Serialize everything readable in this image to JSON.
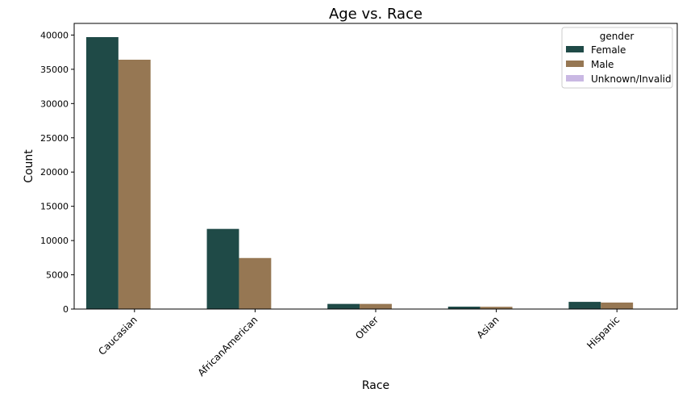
{
  "chart_data": {
    "type": "bar",
    "title": "Age vs. Race",
    "xlabel": "Race",
    "ylabel": "Count",
    "categories": [
      "Caucasian",
      "AfricanAmerican",
      "Other",
      "Asian",
      "Hispanic"
    ],
    "series": [
      {
        "name": "Female",
        "color": "#1f4a47",
        "values": [
          39700,
          11700,
          750,
          350,
          1050
        ]
      },
      {
        "name": "Male",
        "color": "#967753",
        "values": [
          36400,
          7450,
          750,
          330,
          950
        ]
      },
      {
        "name": "Unknown/Invalid",
        "color": "#c9b8e3",
        "values": [
          0,
          0,
          0,
          0,
          0
        ]
      }
    ],
    "ylim": [
      0,
      41700
    ],
    "yticks": [
      0,
      5000,
      10000,
      15000,
      20000,
      25000,
      30000,
      35000,
      40000
    ],
    "legend": {
      "title": "gender",
      "position": "top-right"
    },
    "grid": false
  }
}
